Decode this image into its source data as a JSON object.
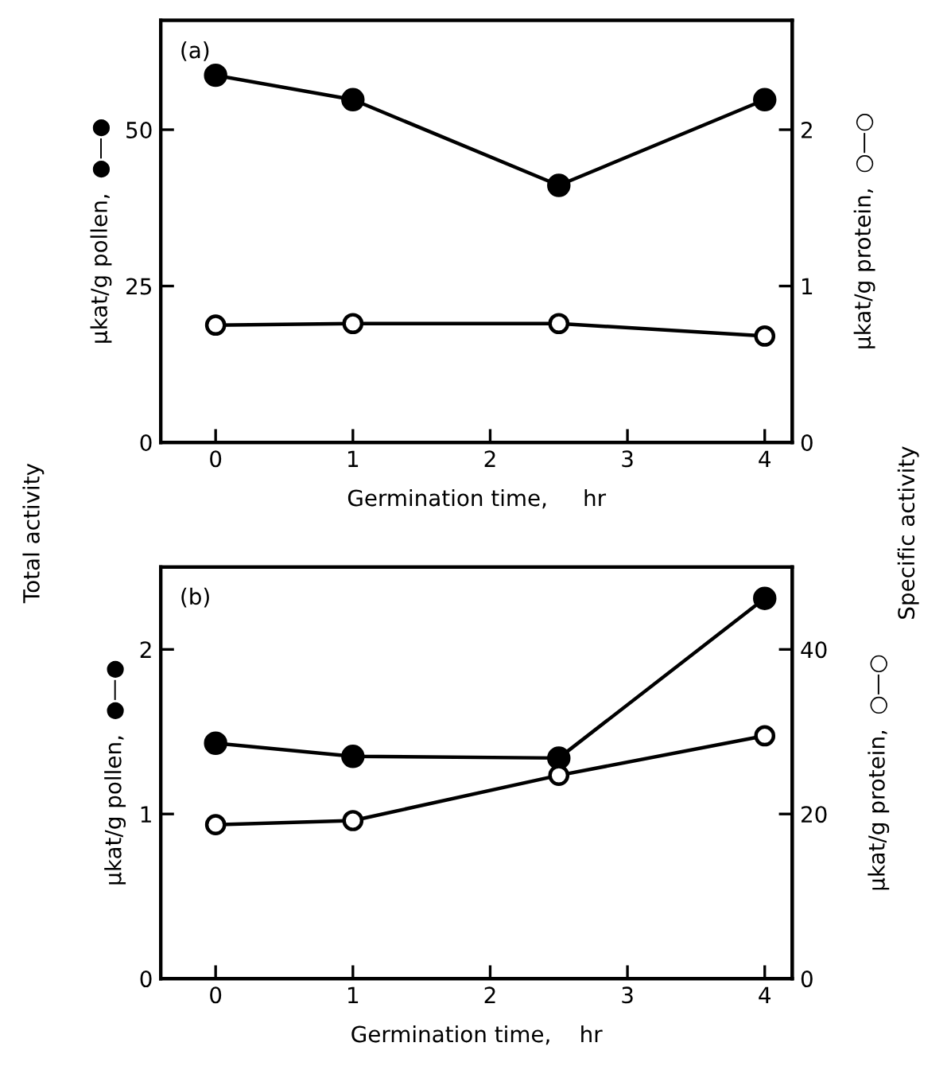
{
  "chart_data": [
    {
      "type": "line",
      "x": [
        0,
        1,
        2.5,
        4
      ],
      "xlim": [
        -0.4,
        4.2
      ],
      "xticks": [
        0,
        1,
        2,
        3,
        4
      ],
      "ylim": [
        0,
        67.5
      ],
      "yticks": [
        0,
        25,
        50
      ],
      "y2lim": [
        0,
        2.7
      ],
      "y2ticks": [
        0,
        1,
        2
      ],
      "xlabel": "Germination time,     hr",
      "ylabel": "μkat/g pollen,  ●—●",
      "y2label": "μkat/g protein,  ○—○",
      "marker": "circle",
      "grid": false,
      "legend": false,
      "annotations": [
        "(a)",
        "Total activity",
        "Specific activity"
      ],
      "series": [
        {
          "color": "#000000",
          "values": [
            58.7,
            54.8,
            41.1,
            54.8
          ]
        },
        {
          "color": "#000000",
          "axis": "y2",
          "values": [
            0.75,
            0.76,
            0.76,
            0.68
          ]
        }
      ]
    },
    {
      "type": "line",
      "x": [
        0,
        1,
        2.5,
        4
      ],
      "xlim": [
        -0.4,
        4.2
      ],
      "xticks": [
        0,
        1,
        2,
        3,
        4
      ],
      "ylim": [
        0,
        2.5
      ],
      "yticks": [
        0,
        1,
        2
      ],
      "y2lim": [
        0,
        50
      ],
      "y2ticks": [
        0,
        20,
        40
      ],
      "xlabel": "Germination time,    hr",
      "ylabel": "μkat/g pollen,  ●—●",
      "y2label": "μkat/g protein,  ○—○",
      "marker": "circle",
      "grid": false,
      "legend": false,
      "annotations": [
        "(b)"
      ],
      "series": [
        {
          "color": "#000000",
          "values": [
            1.43,
            1.35,
            1.34,
            2.31
          ]
        },
        {
          "color": "#000000",
          "axis": "y2",
          "values": [
            18.7,
            19.2,
            24.7,
            29.5
          ]
        }
      ]
    }
  ]
}
